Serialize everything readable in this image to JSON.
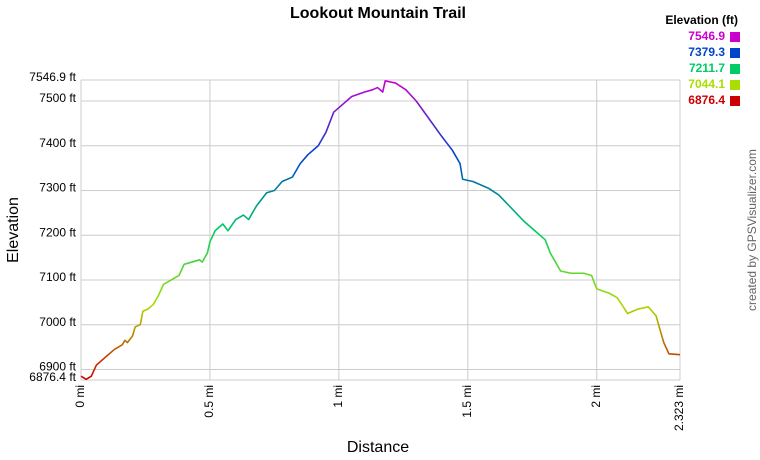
{
  "chart_data": {
    "type": "line",
    "title": "Lookout Mountain Trail",
    "x_label": "Distance",
    "y_label": "Elevation",
    "credit": "created by GPSVisualizer.com",
    "x": [
      0,
      0.02,
      0.04,
      0.06,
      0.1,
      0.13,
      0.16,
      0.17,
      0.18,
      0.2,
      0.21,
      0.23,
      0.24,
      0.26,
      0.28,
      0.3,
      0.32,
      0.35,
      0.38,
      0.4,
      0.43,
      0.46,
      0.47,
      0.49,
      0.5,
      0.52,
      0.55,
      0.57,
      0.6,
      0.63,
      0.65,
      0.68,
      0.72,
      0.75,
      0.78,
      0.82,
      0.85,
      0.88,
      0.92,
      0.95,
      0.98,
      1.0,
      1.05,
      1.1,
      1.13,
      1.15,
      1.17,
      1.18,
      1.22,
      1.26,
      1.3,
      1.35,
      1.4,
      1.44,
      1.47,
      1.48,
      1.52,
      1.58,
      1.62,
      1.67,
      1.72,
      1.77,
      1.8,
      1.82,
      1.86,
      1.9,
      1.95,
      1.98,
      2.0,
      2.05,
      2.08,
      2.12,
      2.16,
      2.2,
      2.23,
      2.26,
      2.28,
      2.323
    ],
    "values": [
      6885,
      6878,
      6885,
      6910,
      6930,
      6945,
      6955,
      6965,
      6960,
      6975,
      6995,
      7000,
      7030,
      7035,
      7045,
      7065,
      7090,
      7100,
      7110,
      7135,
      7140,
      7145,
      7140,
      7160,
      7185,
      7210,
      7225,
      7210,
      7235,
      7245,
      7235,
      7265,
      7295,
      7300,
      7320,
      7330,
      7360,
      7380,
      7400,
      7430,
      7475,
      7485,
      7510,
      7520,
      7525,
      7530,
      7520,
      7545,
      7540,
      7525,
      7500,
      7460,
      7420,
      7390,
      7360,
      7325,
      7320,
      7305,
      7290,
      7260,
      7230,
      7205,
      7190,
      7160,
      7120,
      7115,
      7115,
      7110,
      7080,
      7070,
      7060,
      7025,
      7035,
      7040,
      7020,
      6960,
      6935,
      6933
    ],
    "xlim": [
      0,
      2.323
    ],
    "ylim": [
      6876.4,
      7546.9
    ],
    "xticks": [
      {
        "value": 0,
        "label": "0 mi"
      },
      {
        "value": 0.5,
        "label": "0.5 mi"
      },
      {
        "value": 1,
        "label": "1 mi"
      },
      {
        "value": 1.5,
        "label": "1.5 mi"
      },
      {
        "value": 2,
        "label": "2 mi"
      },
      {
        "value": 2.323,
        "label": "2.323 mi"
      }
    ],
    "yticks": [
      {
        "value": 6876.4,
        "label": "6876.4 ft"
      },
      {
        "value": 6900,
        "label": "6900 ft"
      },
      {
        "value": 7000,
        "label": "7000 ft"
      },
      {
        "value": 7100,
        "label": "7100 ft"
      },
      {
        "value": 7200,
        "label": "7200 ft"
      },
      {
        "value": 7300,
        "label": "7300 ft"
      },
      {
        "value": 7400,
        "label": "7400 ft"
      },
      {
        "value": 7500,
        "label": "7500 ft"
      },
      {
        "value": 7546.9,
        "label": "7546.9 ft"
      }
    ],
    "grid": true,
    "color_scale": {
      "title": "Elevation (ft)",
      "stops": [
        {
          "value": 7546.9,
          "color": "#cc00cc"
        },
        {
          "value": 7379.3,
          "color": "#0044cc"
        },
        {
          "value": 7211.7,
          "color": "#00cc66"
        },
        {
          "value": 7044.1,
          "color": "#aadd00"
        },
        {
          "value": 6876.4,
          "color": "#cc0000"
        }
      ]
    }
  }
}
